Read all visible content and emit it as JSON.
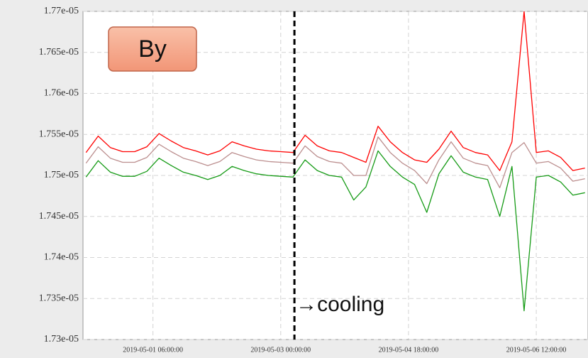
{
  "chart_data": {
    "type": "line",
    "annotations": [
      {
        "text": "By"
      },
      {
        "text": "→cooling",
        "x": "2019-05-03 04:30:00"
      }
    ],
    "x": [
      "2019-04-30 08:00:00",
      "2019-04-30 12:00:00",
      "2019-04-30 16:00:00",
      "2019-04-30 20:00:00",
      "2019-05-01 00:00:00",
      "2019-05-01 04:00:00",
      "2019-05-01 08:00:00",
      "2019-05-01 12:00:00",
      "2019-05-01 16:00:00",
      "2019-05-01 20:00:00",
      "2019-05-02 00:00:00",
      "2019-05-02 04:00:00",
      "2019-05-02 08:00:00",
      "2019-05-02 12:00:00",
      "2019-05-02 16:00:00",
      "2019-05-02 20:00:00",
      "2019-05-03 00:00:00",
      "2019-05-03 04:00:00",
      "2019-05-03 08:00:00",
      "2019-05-03 12:00:00",
      "2019-05-03 16:00:00",
      "2019-05-03 20:00:00",
      "2019-05-04 00:00:00",
      "2019-05-04 04:00:00",
      "2019-05-04 08:00:00",
      "2019-05-04 12:00:00",
      "2019-05-04 16:00:00",
      "2019-05-04 20:00:00",
      "2019-05-05 00:00:00",
      "2019-05-05 04:00:00",
      "2019-05-05 08:00:00",
      "2019-05-05 12:00:00",
      "2019-05-05 16:00:00",
      "2019-05-05 20:00:00",
      "2019-05-06 00:00:00",
      "2019-05-06 04:00:00",
      "2019-05-06 08:00:00",
      "2019-05-06 12:00:00",
      "2019-05-06 16:00:00",
      "2019-05-06 20:00:00",
      "2019-05-07 00:00:00",
      "2019-05-07 04:00:00"
    ],
    "series": [
      {
        "color": "#ff0000",
        "values": [
          1.7528e-05,
          1.7548e-05,
          1.7534e-05,
          1.7529e-05,
          1.7529e-05,
          1.7535e-05,
          1.7551e-05,
          1.7542e-05,
          1.7534e-05,
          1.753e-05,
          1.7525e-05,
          1.753e-05,
          1.7541e-05,
          1.7536e-05,
          1.7532e-05,
          1.753e-05,
          1.7529e-05,
          1.7528e-05,
          1.7549e-05,
          1.7536e-05,
          1.753e-05,
          1.7528e-05,
          1.7522e-05,
          1.7516e-05,
          1.756e-05,
          1.7541e-05,
          1.7528e-05,
          1.7519e-05,
          1.7516e-05,
          1.7532e-05,
          1.7554e-05,
          1.7534e-05,
          1.7528e-05,
          1.7525e-05,
          1.7506e-05,
          1.7541e-05,
          1.77e-05,
          1.7528e-05,
          1.753e-05,
          1.7522e-05,
          1.7506e-05,
          1.7509e-05
        ]
      },
      {
        "color": "#bc8f8f",
        "values": [
          1.7515e-05,
          1.7535e-05,
          1.7521e-05,
          1.7516e-05,
          1.7516e-05,
          1.7522e-05,
          1.7538e-05,
          1.7529e-05,
          1.7521e-05,
          1.7517e-05,
          1.7512e-05,
          1.7517e-05,
          1.7528e-05,
          1.7523e-05,
          1.7519e-05,
          1.7517e-05,
          1.7516e-05,
          1.7515e-05,
          1.7536e-05,
          1.7523e-05,
          1.7517e-05,
          1.7515e-05,
          1.75e-05,
          1.75e-05,
          1.7547e-05,
          1.7528e-05,
          1.7515e-05,
          1.7506e-05,
          1.749e-05,
          1.7519e-05,
          1.7541e-05,
          1.7521e-05,
          1.7515e-05,
          1.7512e-05,
          1.7485e-05,
          1.7528e-05,
          1.754e-05,
          1.7515e-05,
          1.7517e-05,
          1.7509e-05,
          1.7493e-05,
          1.7496e-05
        ]
      },
      {
        "color": "#169b16",
        "values": [
          1.7498e-05,
          1.7518e-05,
          1.7504e-05,
          1.7499e-05,
          1.7499e-05,
          1.7505e-05,
          1.7521e-05,
          1.7512e-05,
          1.7504e-05,
          1.75e-05,
          1.7495e-05,
          1.75e-05,
          1.7511e-05,
          1.7506e-05,
          1.7502e-05,
          1.75e-05,
          1.7499e-05,
          1.7498e-05,
          1.7519e-05,
          1.7506e-05,
          1.75e-05,
          1.7498e-05,
          1.747e-05,
          1.7486e-05,
          1.753e-05,
          1.7511e-05,
          1.7498e-05,
          1.7489e-05,
          1.7455e-05,
          1.7502e-05,
          1.7524e-05,
          1.7504e-05,
          1.7498e-05,
          1.7495e-05,
          1.745e-05,
          1.7511e-05,
          1.7335e-05,
          1.7498e-05,
          1.75e-05,
          1.7492e-05,
          1.7476e-05,
          1.7479e-05
        ]
      }
    ],
    "xlim": [
      "2019-04-30 07:00:00",
      "2019-05-07 05:00:00"
    ],
    "xticks": [
      "2019-05-01 06:00:00",
      "2019-05-03 00:00:00",
      "2019-05-04 18:00:00",
      "2019-05-06 12:00:00"
    ],
    "ylim": [
      1.73e-05,
      1.77e-05
    ],
    "yticks": [
      {
        "value": 1.73e-05,
        "label": "1.73e-05"
      },
      {
        "value": 1.735e-05,
        "label": "1.735e-05"
      },
      {
        "value": 1.74e-05,
        "label": "1.74e-05"
      },
      {
        "value": 1.745e-05,
        "label": "1.745e-05"
      },
      {
        "value": 1.75e-05,
        "label": "1.75e-05"
      },
      {
        "value": 1.755e-05,
        "label": "1.755e-05"
      },
      {
        "value": 1.76e-05,
        "label": "1.76e-05"
      },
      {
        "value": 1.765e-05,
        "label": "1.765e-05"
      },
      {
        "value": 1.77e-05,
        "label": "1.77e-05"
      }
    ],
    "grid": true
  }
}
